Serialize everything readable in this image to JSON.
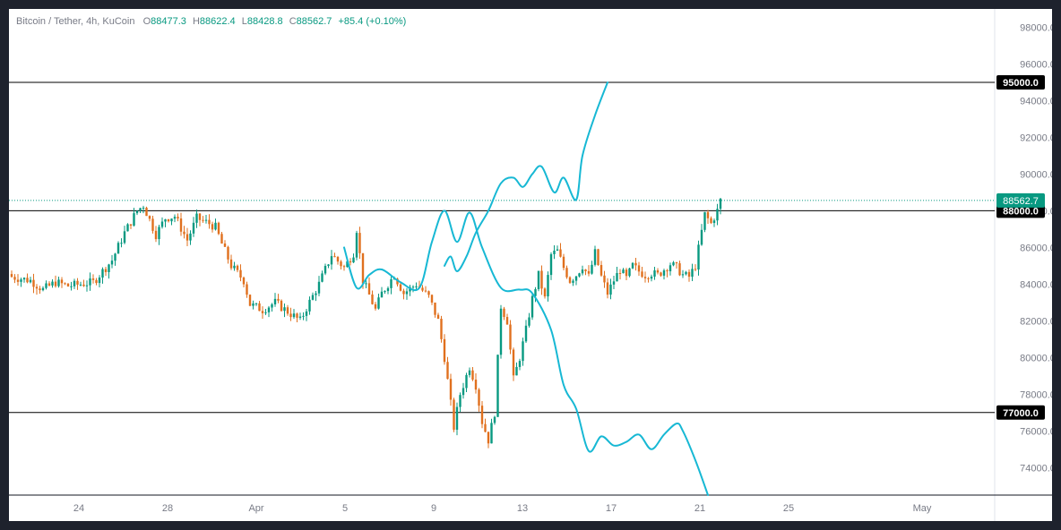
{
  "legend": {
    "symbol": "Bitcoin / Tether, 4h, KuCoin",
    "o_label": "O",
    "o_value": "88477.3",
    "h_label": "H",
    "h_value": "88622.4",
    "l_label": "L",
    "l_value": "88428.8",
    "c_label": "C",
    "c_value": "88562.7",
    "change": "+85.4 (+0.10%)"
  },
  "colors": {
    "up": "#089981",
    "down": "#e0701e",
    "projection": "#17b8d4",
    "level": "#000000",
    "axis_text": "#787b86"
  },
  "chart_data": {
    "type": "candlestick",
    "y_axis": {
      "range": [
        72500,
        99000
      ],
      "ticks": [
        74000,
        76000,
        78000,
        80000,
        82000,
        84000,
        86000,
        88000,
        90000,
        92000,
        94000,
        96000,
        98000
      ],
      "tick_labels": [
        "74000.0",
        "76000.0",
        "78000.0",
        "80000.0",
        "82000.0",
        "84000.0",
        "86000.0",
        "88000.0",
        "90000.0",
        "92000.0",
        "94000.0",
        "96000.0",
        "98000.0"
      ]
    },
    "x_axis": {
      "labels": [
        "24",
        "28",
        "Apr",
        "5",
        "9",
        "13",
        "17",
        "21",
        "25",
        "May"
      ]
    },
    "horizontal_levels": [
      {
        "price": 95000,
        "label": "95000.0"
      },
      {
        "price": 88000,
        "label": "88000.0"
      },
      {
        "price": 77000,
        "label": "77000.0"
      }
    ],
    "last_price": {
      "price": 88562.7,
      "label": "88562.7"
    },
    "close_path": [
      [
        0,
        84400
      ],
      [
        6,
        84200
      ],
      [
        10,
        83700
      ],
      [
        14,
        84100
      ],
      [
        18,
        83900
      ],
      [
        22,
        84000
      ],
      [
        26,
        84100
      ],
      [
        28,
        84500
      ],
      [
        32,
        85300
      ],
      [
        36,
        86800
      ],
      [
        40,
        88000
      ],
      [
        42,
        88300
      ],
      [
        46,
        86700
      ],
      [
        49,
        87600
      ],
      [
        52,
        87700
      ],
      [
        56,
        86400
      ],
      [
        59,
        87600
      ],
      [
        63,
        87300
      ],
      [
        65,
        87100
      ],
      [
        67,
        86200
      ],
      [
        70,
        85000
      ],
      [
        74,
        84200
      ],
      [
        76,
        82900
      ],
      [
        80,
        82600
      ],
      [
        84,
        83000
      ],
      [
        88,
        82500
      ],
      [
        92,
        82000
      ],
      [
        94,
        82700
      ],
      [
        98,
        84000
      ],
      [
        102,
        85600
      ],
      [
        106,
        84900
      ],
      [
        109,
        85700
      ],
      [
        110,
        87000
      ],
      [
        112,
        84200
      ],
      [
        116,
        82600
      ],
      [
        118,
        83500
      ],
      [
        122,
        84500
      ],
      [
        125,
        83500
      ],
      [
        129,
        84000
      ],
      [
        133,
        83300
      ],
      [
        136,
        82000
      ],
      [
        138,
        80000
      ],
      [
        141,
        76200
      ],
      [
        143,
        78000
      ],
      [
        146,
        79500
      ],
      [
        148,
        78500
      ],
      [
        150,
        76500
      ],
      [
        152,
        75500
      ],
      [
        154,
        77000
      ],
      [
        156,
        82800
      ],
      [
        158,
        82000
      ],
      [
        160,
        78800
      ],
      [
        162,
        80000
      ],
      [
        164,
        81500
      ],
      [
        166,
        83200
      ],
      [
        168,
        84500
      ],
      [
        170,
        83200
      ],
      [
        172,
        85600
      ],
      [
        174,
        85800
      ],
      [
        176,
        84900
      ],
      [
        178,
        84200
      ],
      [
        180,
        84500
      ],
      [
        182,
        85000
      ],
      [
        184,
        84400
      ],
      [
        186,
        85700
      ],
      [
        188,
        84400
      ],
      [
        190,
        83500
      ],
      [
        192,
        84200
      ],
      [
        194,
        84800
      ],
      [
        196,
        84300
      ],
      [
        198,
        85000
      ],
      [
        200,
        84700
      ],
      [
        202,
        84500
      ],
      [
        204,
        84600
      ],
      [
        206,
        84500
      ],
      [
        208,
        84800
      ],
      [
        210,
        85100
      ],
      [
        212,
        84900
      ],
      [
        214,
        84500
      ],
      [
        216,
        84400
      ],
      [
        218,
        85000
      ],
      [
        221,
        87800
      ],
      [
        223,
        87300
      ],
      [
        225,
        88000
      ],
      [
        226,
        88562.7
      ]
    ],
    "projection_paths": [
      [
        [
          138,
          85000
        ],
        [
          140,
          85500
        ],
        [
          142,
          84700
        ],
        [
          145,
          85500
        ],
        [
          148,
          86800
        ],
        [
          152,
          88000
        ],
        [
          156,
          89500
        ],
        [
          160,
          89800
        ],
        [
          163,
          89300
        ],
        [
          166,
          90000
        ],
        [
          169,
          90400
        ],
        [
          173,
          89000
        ],
        [
          176,
          89800
        ],
        [
          180,
          88600
        ],
        [
          182,
          91000
        ],
        [
          186,
          93200
        ],
        [
          190,
          95000
        ]
      ],
      [
        [
          106,
          86000
        ],
        [
          110,
          83800
        ],
        [
          114,
          84500
        ],
        [
          118,
          84800
        ],
        [
          124,
          84100
        ],
        [
          130,
          83800
        ],
        [
          134,
          86300
        ],
        [
          138,
          88000
        ],
        [
          142,
          86300
        ],
        [
          146,
          87900
        ],
        [
          150,
          86000
        ],
        [
          156,
          83800
        ],
        [
          162,
          83700
        ],
        [
          166,
          83500
        ],
        [
          172,
          81500
        ],
        [
          176,
          78500
        ],
        [
          180,
          77200
        ],
        [
          184,
          74900
        ],
        [
          188,
          75700
        ],
        [
          192,
          75200
        ],
        [
          196,
          75400
        ],
        [
          200,
          75800
        ],
        [
          204,
          75000
        ],
        [
          208,
          75800
        ],
        [
          212,
          76400
        ],
        [
          214,
          76000
        ],
        [
          218,
          74400
        ],
        [
          222,
          72500
        ]
      ]
    ]
  }
}
